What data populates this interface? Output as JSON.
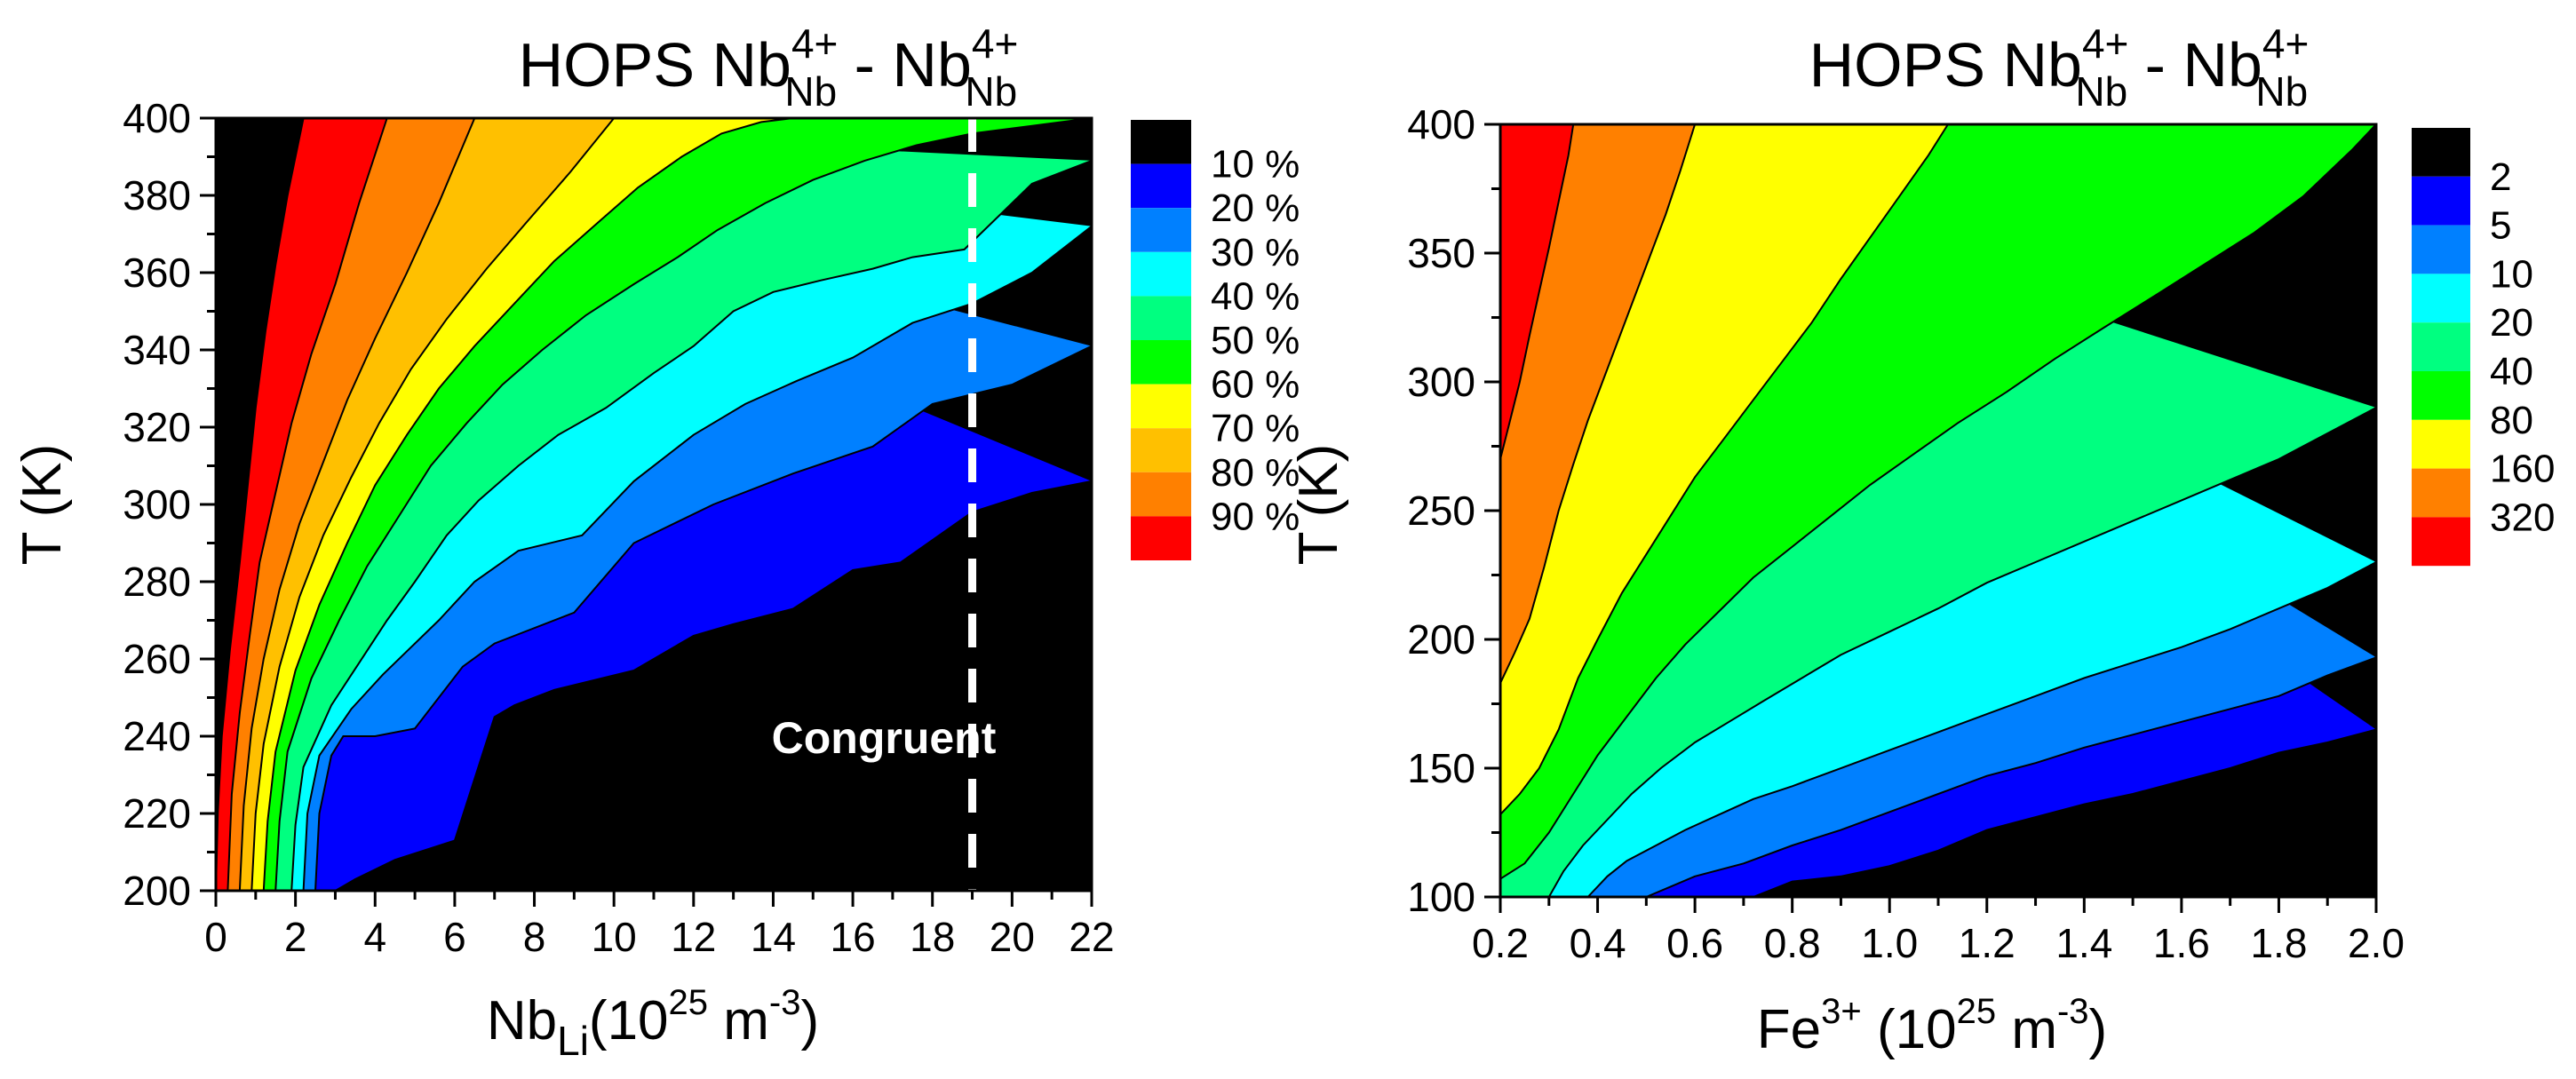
{
  "chart_data": [
    {
      "type": "contour",
      "title_main": "HOPS Nb",
      "title_sup1": "4+",
      "title_sub1": "Nb",
      "title_mid": " - Nb",
      "title_sup2": "4+",
      "title_sub2": "Nb",
      "xlabel_main": "Nb",
      "xlabel_sub": "Li",
      "xlabel_unit_open": "(10",
      "xlabel_unit_exp": "25",
      "xlabel_unit_mid": " m",
      "xlabel_unit_exp2": "-3",
      "xlabel_unit_close": ")",
      "ylabel": "T (K)",
      "xlim": [
        0,
        22
      ],
      "ylim": [
        200,
        400
      ],
      "xticks": [
        "0",
        "2",
        "4",
        "6",
        "8",
        "10",
        "12",
        "14",
        "16",
        "18",
        "20",
        "22"
      ],
      "yticks": [
        "200",
        "220",
        "240",
        "260",
        "280",
        "300",
        "320",
        "340",
        "360",
        "380",
        "400"
      ],
      "legend_labels": [
        "",
        "10 %",
        "20 %",
        "30 %",
        "40 %",
        "50 %",
        "60 %",
        "70 %",
        "80 %",
        "90 %"
      ],
      "annotation": "Congruent",
      "congruent_x": 19,
      "colors": [
        "#000000",
        "#0000ff",
        "#0080ff",
        "#00ffff",
        "#00ff80",
        "#00ff00",
        "#ffff00",
        "#ffc000",
        "#ff8000",
        "#ff0000"
      ],
      "boundaries": [
        {
          "x": [
            3,
            3.5,
            4.5,
            6,
            7,
            7.5,
            8.5,
            10.5,
            12,
            13,
            14.5,
            16,
            17.2,
            19,
            20.5,
            22
          ],
          "y": [
            200,
            203,
            208,
            213,
            245,
            248,
            252,
            257,
            266,
            269,
            273,
            283,
            285,
            298,
            303,
            306
          ]
        },
        {
          "x": [
            2.5,
            2.6,
            2.9,
            3.2,
            4,
            5,
            5.6,
            6.2,
            7,
            9,
            10.5,
            12.5,
            14.5,
            16.5,
            18,
            20,
            22
          ],
          "y": [
            200,
            220,
            235,
            240,
            240,
            242,
            250,
            258,
            264,
            272,
            290,
            300,
            308,
            315,
            326,
            331,
            341
          ]
        },
        {
          "x": [
            2.2,
            2.3,
            2.6,
            3.4,
            4.2,
            4.8,
            5.6,
            6.5,
            7.6,
            9.2,
            10.5,
            12,
            13.3,
            14.6,
            16,
            17.5,
            19,
            20.5,
            22
          ],
          "y": [
            200,
            220,
            235,
            247,
            256,
            262,
            270,
            280,
            288,
            292,
            306,
            318,
            326,
            332,
            338,
            347,
            352,
            360,
            372
          ]
        },
        {
          "x": [
            1.9,
            2,
            2.2,
            2.9,
            3.6,
            4.3,
            5,
            5.8,
            6.6,
            7.6,
            8.6,
            9.8,
            11,
            12,
            13,
            14,
            15.2,
            16.5,
            17.5,
            18.8,
            20.5,
            22
          ],
          "y": [
            200,
            217,
            232,
            248,
            259,
            270,
            280,
            292,
            301,
            310,
            318,
            325,
            334,
            341,
            350,
            355,
            358,
            361,
            364,
            366,
            383,
            389
          ]
        },
        {
          "x": [
            1.5,
            1.6,
            1.8,
            2.4,
            3.1,
            3.8,
            4.6,
            5.4,
            6.3,
            7.2,
            8.2,
            9.3,
            10.5,
            11.6,
            12.6,
            13.8,
            15,
            16.3,
            17.6,
            19,
            20.5,
            22
          ],
          "y": [
            200,
            218,
            236,
            255,
            270,
            284,
            297,
            310,
            321,
            331,
            340,
            349,
            357,
            364,
            371,
            378,
            384,
            389,
            393,
            396,
            398,
            400
          ]
        },
        {
          "x": [
            1.2,
            1.3,
            1.5,
            2,
            2.6,
            3.3,
            4,
            4.8,
            5.6,
            6.5,
            7.5,
            8.5,
            9.6,
            10.6,
            11.7,
            12.7,
            13.7,
            14.5
          ],
          "y": [
            200,
            218,
            236,
            257,
            274,
            290,
            305,
            318,
            330,
            341,
            352,
            363,
            373,
            382,
            390,
            396,
            399,
            400
          ]
        },
        {
          "x": [
            0.9,
            1,
            1.2,
            1.6,
            2.1,
            2.7,
            3.4,
            4.1,
            4.9,
            5.8,
            6.8,
            7.8,
            8.9,
            10
          ],
          "y": [
            200,
            220,
            238,
            258,
            276,
            292,
            307,
            321,
            335,
            348,
            361,
            373,
            386,
            400
          ]
        },
        {
          "x": [
            0.6,
            0.7,
            0.9,
            1.2,
            1.6,
            2.1,
            2.7,
            3.3,
            4,
            4.8,
            5.6,
            6.5
          ],
          "y": [
            200,
            222,
            242,
            260,
            278,
            295,
            311,
            327,
            343,
            360,
            378,
            400
          ]
        },
        {
          "x": [
            0.3,
            0.4,
            0.6,
            0.85,
            1.1,
            1.5,
            1.9,
            2.4,
            3,
            3.6,
            4.3
          ],
          "y": [
            200,
            225,
            246,
            266,
            285,
            303,
            321,
            339,
            357,
            378,
            400
          ]
        },
        {
          "x": [
            0,
            0.05,
            0.15,
            0.35,
            0.6,
            0.8,
            1,
            1.25,
            1.5,
            1.8,
            2.2
          ],
          "y": [
            200,
            220,
            240,
            262,
            285,
            305,
            325,
            345,
            362,
            380,
            400
          ]
        }
      ]
    },
    {
      "type": "contour",
      "title_main": "HOPS Nb",
      "title_sup1": "4+",
      "title_sub1": "Nb",
      "title_mid": " - Nb",
      "title_sup2": "4+",
      "title_sub2": "Nb",
      "xlabel_main": "Fe",
      "xlabel_sup": "3+",
      "xlabel_unit_open": " (10",
      "xlabel_unit_exp": "25",
      "xlabel_unit_mid": " m",
      "xlabel_unit_exp2": "-3",
      "xlabel_unit_close": ")",
      "ylabel": "T (K)",
      "xlim": [
        0.2,
        2.0
      ],
      "ylim": [
        100,
        400
      ],
      "xticks": [
        "0.2",
        "0.4",
        "0.6",
        "0.8",
        "1.0",
        "1.2",
        "1.4",
        "1.6",
        "1.8",
        "2.0"
      ],
      "yticks": [
        "100",
        "150",
        "200",
        "250",
        "300",
        "350",
        "400"
      ],
      "legend_labels": [
        "",
        "2",
        "5",
        "10",
        "20",
        "40",
        "80",
        "160",
        "320"
      ],
      "colors": [
        "#000000",
        "#0000ff",
        "#0080ff",
        "#00ffff",
        "#00ff80",
        "#00ff00",
        "#ffff00",
        "#ff8000",
        "#ff0000"
      ],
      "boundaries": [
        {
          "x": [
            0.72,
            0.8,
            0.9,
            1.0,
            1.1,
            1.2,
            1.3,
            1.4,
            1.5,
            1.6,
            1.7,
            1.8,
            1.9,
            2.0
          ],
          "y": [
            100,
            106,
            108,
            112,
            118,
            126,
            131,
            136,
            140,
            145,
            150,
            156,
            160,
            165
          ]
        },
        {
          "x": [
            0.5,
            0.55,
            0.6,
            0.7,
            0.8,
            0.9,
            1.0,
            1.1,
            1.2,
            1.3,
            1.4,
            1.5,
            1.6,
            1.7,
            1.8,
            1.9,
            2.0
          ],
          "y": [
            100,
            104,
            108,
            113,
            120,
            126,
            133,
            140,
            147,
            152,
            158,
            163,
            168,
            173,
            178,
            186,
            193
          ]
        },
        {
          "x": [
            0.38,
            0.42,
            0.46,
            0.52,
            0.58,
            0.65,
            0.72,
            0.8,
            0.9,
            1.0,
            1.1,
            1.2,
            1.3,
            1.4,
            1.5,
            1.6,
            1.7,
            1.8,
            1.9,
            2.0
          ],
          "y": [
            100,
            108,
            114,
            120,
            126,
            132,
            138,
            143,
            150,
            157,
            164,
            171,
            178,
            185,
            191,
            197,
            204,
            212,
            220,
            230
          ]
        },
        {
          "x": [
            0.3,
            0.33,
            0.37,
            0.42,
            0.47,
            0.53,
            0.6,
            0.67,
            0.74,
            0.82,
            0.9,
            1.0,
            1.1,
            1.2,
            1.3,
            1.4,
            1.5,
            1.6,
            1.7,
            1.8,
            1.9,
            2.0
          ],
          "y": [
            100,
            110,
            120,
            130,
            140,
            150,
            160,
            168,
            176,
            185,
            194,
            203,
            212,
            222,
            230,
            238,
            246,
            254,
            262,
            270,
            280,
            290
          ]
        },
        {
          "x": [
            0.2,
            0.25,
            0.3,
            0.35,
            0.4,
            0.46,
            0.52,
            0.58,
            0.65,
            0.72,
            0.8,
            0.88,
            0.96,
            1.05,
            1.14,
            1.24,
            1.34,
            1.44,
            1.55,
            1.65,
            1.75,
            1.85,
            1.95,
            2.0
          ],
          "y": [
            107,
            113,
            125,
            140,
            155,
            170,
            185,
            198,
            211,
            224,
            236,
            248,
            260,
            272,
            284,
            296,
            309,
            321,
            334,
            346,
            358,
            372,
            390,
            400
          ]
        },
        {
          "x": [
            0.2,
            0.24,
            0.28,
            0.32,
            0.36,
            0.4,
            0.45,
            0.5,
            0.55,
            0.6,
            0.66,
            0.72,
            0.78,
            0.84,
            0.9,
            0.96,
            1.02,
            1.08,
            1.12
          ],
          "y": [
            132,
            140,
            150,
            165,
            185,
            200,
            218,
            233,
            248,
            263,
            278,
            293,
            308,
            323,
            340,
            356,
            372,
            388,
            400
          ]
        },
        {
          "x": [
            0.2,
            0.23,
            0.26,
            0.29,
            0.32,
            0.35,
            0.38,
            0.42,
            0.46,
            0.5,
            0.54,
            0.57,
            0.6
          ],
          "y": [
            183,
            195,
            208,
            228,
            250,
            268,
            285,
            305,
            325,
            345,
            365,
            382,
            400
          ]
        },
        {
          "x": [
            0.2,
            0.22,
            0.24,
            0.26,
            0.28,
            0.3,
            0.32,
            0.34,
            0.35
          ],
          "y": [
            270,
            285,
            300,
            318,
            335,
            352,
            370,
            388,
            400
          ]
        }
      ]
    }
  ]
}
